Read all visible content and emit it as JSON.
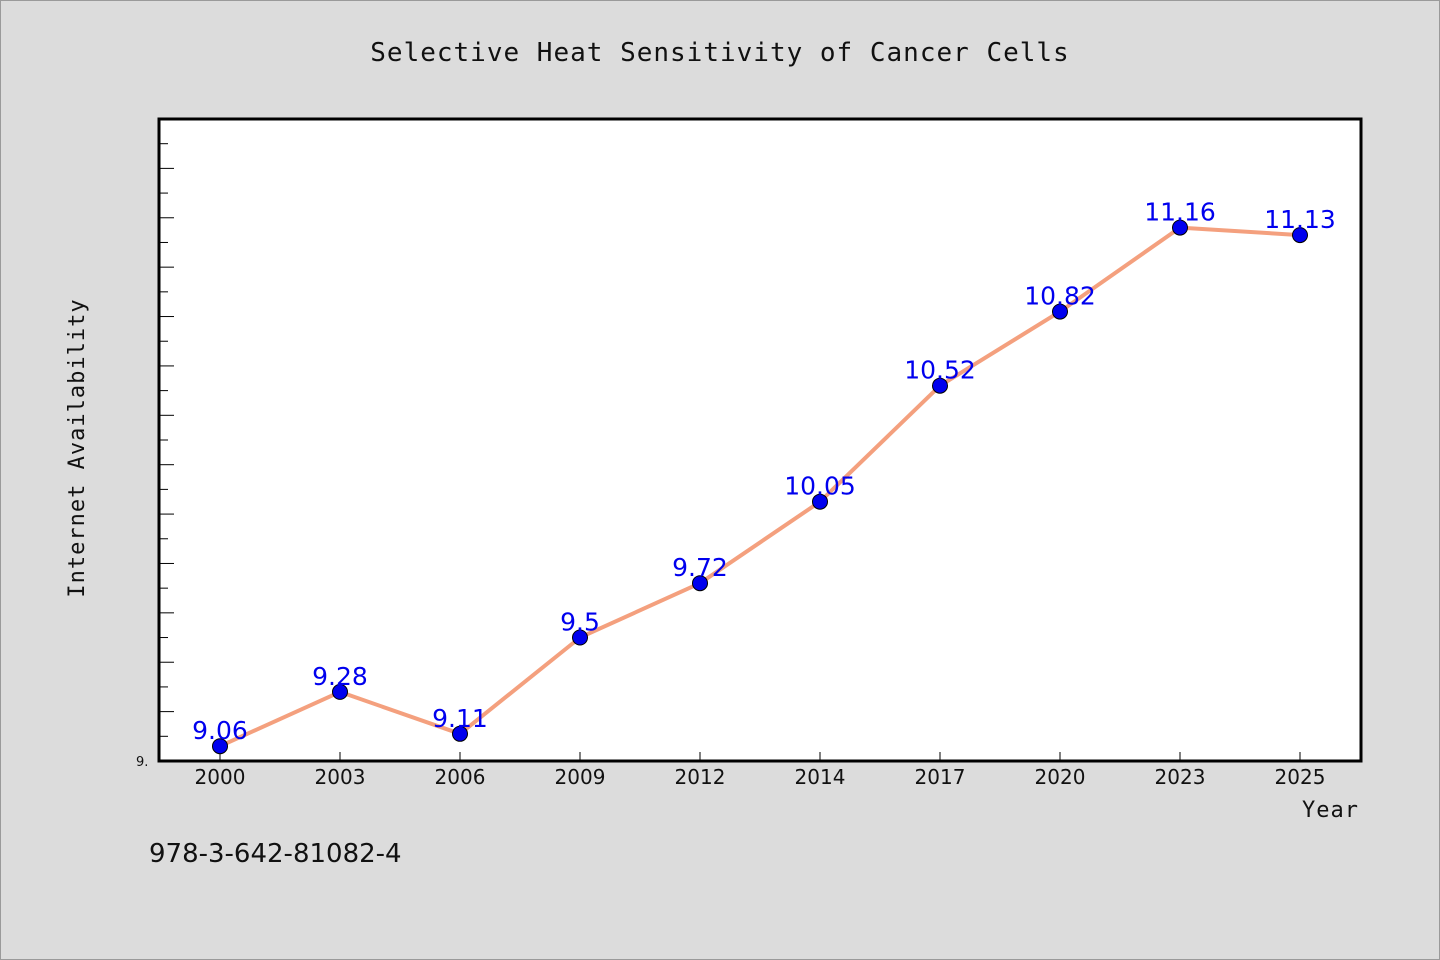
{
  "chart_data": {
    "type": "line",
    "title": "Selective Heat Sensitivity of Cancer Cells",
    "xlabel": "Year",
    "ylabel": "Internet Availability",
    "categories": [
      "2000",
      "2003",
      "2006",
      "2009",
      "2012",
      "2014",
      "2017",
      "2020",
      "2023",
      "2025"
    ],
    "series": [
      {
        "values": [
          9.06,
          9.28,
          9.11,
          9.5,
          9.72,
          10.05,
          10.52,
          10.82,
          11.16,
          11.13
        ],
        "line_color": "#f4a07e",
        "marker_color": "#0000ee",
        "label_color": "#0000ee"
      }
    ],
    "ylim": [
      9.0,
      11.6
    ],
    "y_tick_label": "9.",
    "grid": false,
    "legend": "none"
  },
  "footer": {
    "text": "978-3-642-81082-4"
  },
  "colors": {
    "background": "#dcdcdc",
    "plot_background": "#ffffff"
  }
}
